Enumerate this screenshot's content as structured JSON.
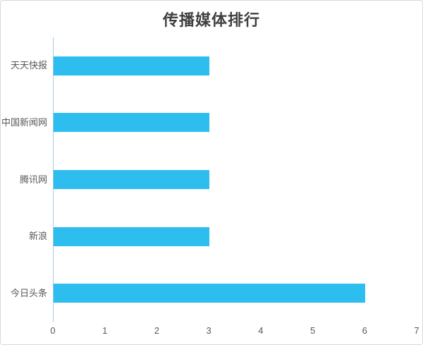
{
  "chart_data": {
    "type": "bar",
    "orientation": "horizontal",
    "title": "传播媒体排行",
    "categories": [
      "天天快报",
      "中国新闻网",
      "腾讯网",
      "新浪",
      "今日头条"
    ],
    "values": [
      3,
      3,
      3,
      3,
      6
    ],
    "xlabel": "",
    "ylabel": "",
    "xlim": [
      0,
      7
    ],
    "xticks": [
      "0",
      "1",
      "2",
      "3",
      "4",
      "5",
      "6",
      "7"
    ],
    "grid": false,
    "legend_position": "none",
    "colors": {
      "bar": "#2ebdef",
      "axis_line": "#a9c9e8",
      "tick_label": "#595959",
      "title": "#3f3f3f",
      "frame_border": "#d9d9d9",
      "background": "#ffffff"
    }
  }
}
